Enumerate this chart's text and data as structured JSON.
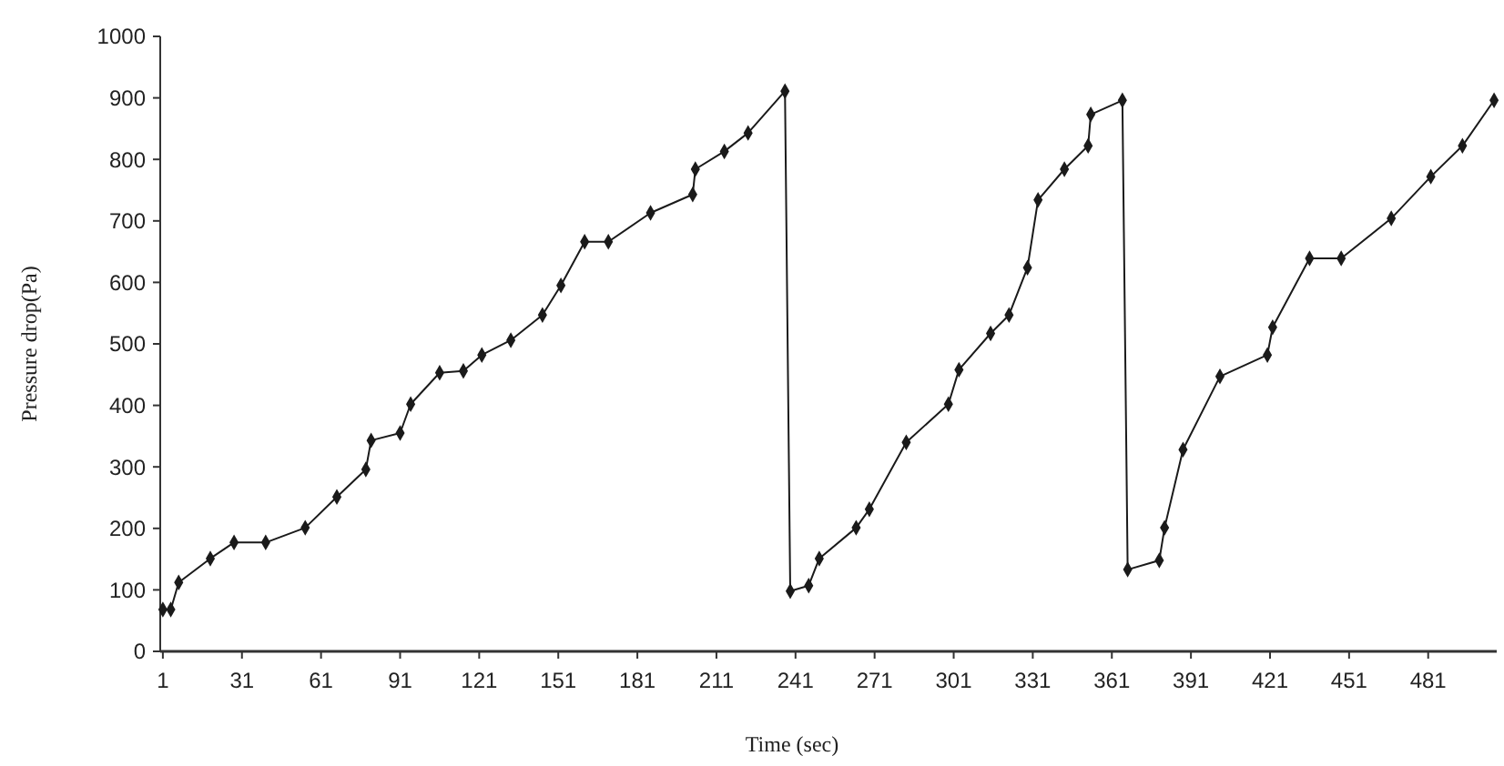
{
  "chart_data": {
    "type": "line",
    "xlabel": "Time (sec)",
    "ylabel": "Pressure drop(Pa)",
    "marker": "diamond",
    "xlim": [
      0,
      507
    ],
    "xticks": [
      1,
      31,
      61,
      91,
      121,
      151,
      181,
      211,
      241,
      271,
      301,
      331,
      361,
      391,
      421,
      451,
      481
    ],
    "ylim": [
      0,
      1000
    ],
    "yticks": [
      0,
      100,
      200,
      300,
      400,
      500,
      600,
      700,
      800,
      900,
      1000
    ],
    "series": [
      {
        "color": "#1a1a1a",
        "x": [
          1,
          4,
          7,
          19,
          28,
          40,
          55,
          67,
          78,
          80,
          91,
          95,
          106,
          115,
          122,
          133,
          145,
          152,
          161,
          170,
          186,
          202,
          203,
          214,
          223,
          237,
          239,
          246,
          250,
          264,
          269,
          283,
          299,
          303,
          315,
          322,
          329,
          333,
          343,
          352,
          353,
          365,
          367,
          379,
          381,
          388,
          402,
          420,
          422,
          436,
          448,
          467,
          482,
          494,
          506
        ],
        "values": [
          68,
          68,
          112,
          151,
          177,
          177,
          201,
          251,
          296,
          343,
          355,
          402,
          453,
          456,
          482,
          506,
          547,
          595,
          666,
          666,
          713,
          743,
          784,
          813,
          843,
          911,
          98,
          107,
          151,
          201,
          231,
          340,
          402,
          458,
          517,
          547,
          624,
          734,
          784,
          822,
          873,
          896,
          133,
          148,
          201,
          328,
          447,
          482,
          527,
          639,
          639,
          704,
          772,
          822,
          896
        ]
      }
    ]
  }
}
